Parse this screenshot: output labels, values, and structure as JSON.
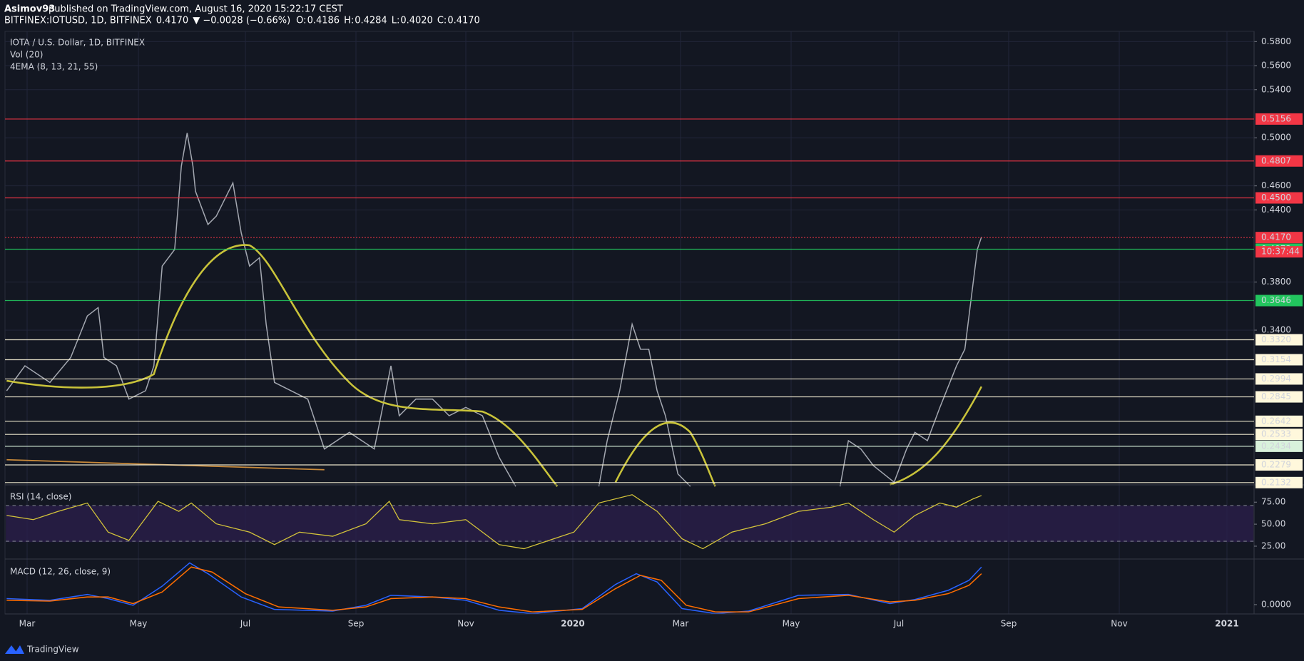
{
  "header": {
    "author": "Asimov93",
    "published": "published on TradingView.com, August 16, 2020 15:22:17 CEST",
    "symbol": "BITFINEX:IOTUSD, 1D, BITFINEX",
    "last": "0.4170",
    "change": "▼ −0.0028 (−0.66%)",
    "ohlc": [
      {
        "label": "O:",
        "value": "0.4186"
      },
      {
        "label": "H:",
        "value": "0.4284"
      },
      {
        "label": "L:",
        "value": "0.4020"
      },
      {
        "label": "C:",
        "value": "0.4170"
      }
    ]
  },
  "legend": [
    "IOTA / U.S. Dollar, 1D, BITFINEX",
    "Vol (20)",
    "4EMA (8, 13, 21, 55)"
  ],
  "price_axis": {
    "ylim": [
      0.2113,
      0.5885
    ],
    "yticks": [
      {
        "value": 0.58,
        "label": "0.5800"
      },
      {
        "value": 0.56,
        "label": "0.5600"
      },
      {
        "value": 0.54,
        "label": "0.5400"
      },
      {
        "value": 0.5,
        "label": "0.5000"
      },
      {
        "value": 0.46,
        "label": "0.4600"
      },
      {
        "value": 0.44,
        "label": "0.4400"
      },
      {
        "value": 0.38,
        "label": "0.3800"
      },
      {
        "value": 0.34,
        "label": "0.3400"
      }
    ],
    "grid": true
  },
  "levels": [
    {
      "value": 0.5156,
      "color": "#f23645"
    },
    {
      "value": 0.4807,
      "color": "#f23645"
    },
    {
      "value": 0.45,
      "label": "0.4500",
      "color": "#f23645"
    },
    {
      "value": 0.4073,
      "color": "#22c55e"
    },
    {
      "value": 0.3646,
      "color": "#22c55e"
    },
    {
      "value": 0.332,
      "label": "0.3320",
      "color": "#fff8dc"
    },
    {
      "value": 0.3154,
      "color": "#fff8dc"
    },
    {
      "value": 0.2994,
      "color": "#fff8dc"
    },
    {
      "value": 0.2845,
      "color": "#fff8dc"
    },
    {
      "value": 0.2642,
      "color": "#fff8dc"
    },
    {
      "value": 0.2533,
      "color": "#fff8dc"
    },
    {
      "value": 0.2434,
      "color": "#d9f2dc"
    },
    {
      "value": 0.2279,
      "color": "#fff8dc"
    },
    {
      "value": 0.2132,
      "color": "#fff8dc"
    }
  ],
  "current_price": {
    "value": 0.417,
    "label": "0.4170",
    "countdown": "10:37:44",
    "color": "#f23645"
  },
  "rsi": {
    "title": "RSI (14, close)",
    "ylim": [
      10.4,
      93
    ],
    "yticks": [
      {
        "value": 75,
        "label": "75.00"
      },
      {
        "value": 50,
        "label": "50.00"
      },
      {
        "value": 25,
        "label": "25.00"
      }
    ]
  },
  "macd": {
    "title": "MACD (12, 26, close, 9)",
    "ylim": [
      -0.004,
      0.019
    ],
    "yticks": [
      {
        "value": 0,
        "label": "0.0000"
      }
    ]
  },
  "time_axis": [
    "Mar",
    "May",
    "Jul",
    "Sep",
    "Nov",
    "2020",
    "Mar",
    "May",
    "Jul",
    "Sep",
    "Nov",
    "2021"
  ],
  "footer": "TradingView"
}
